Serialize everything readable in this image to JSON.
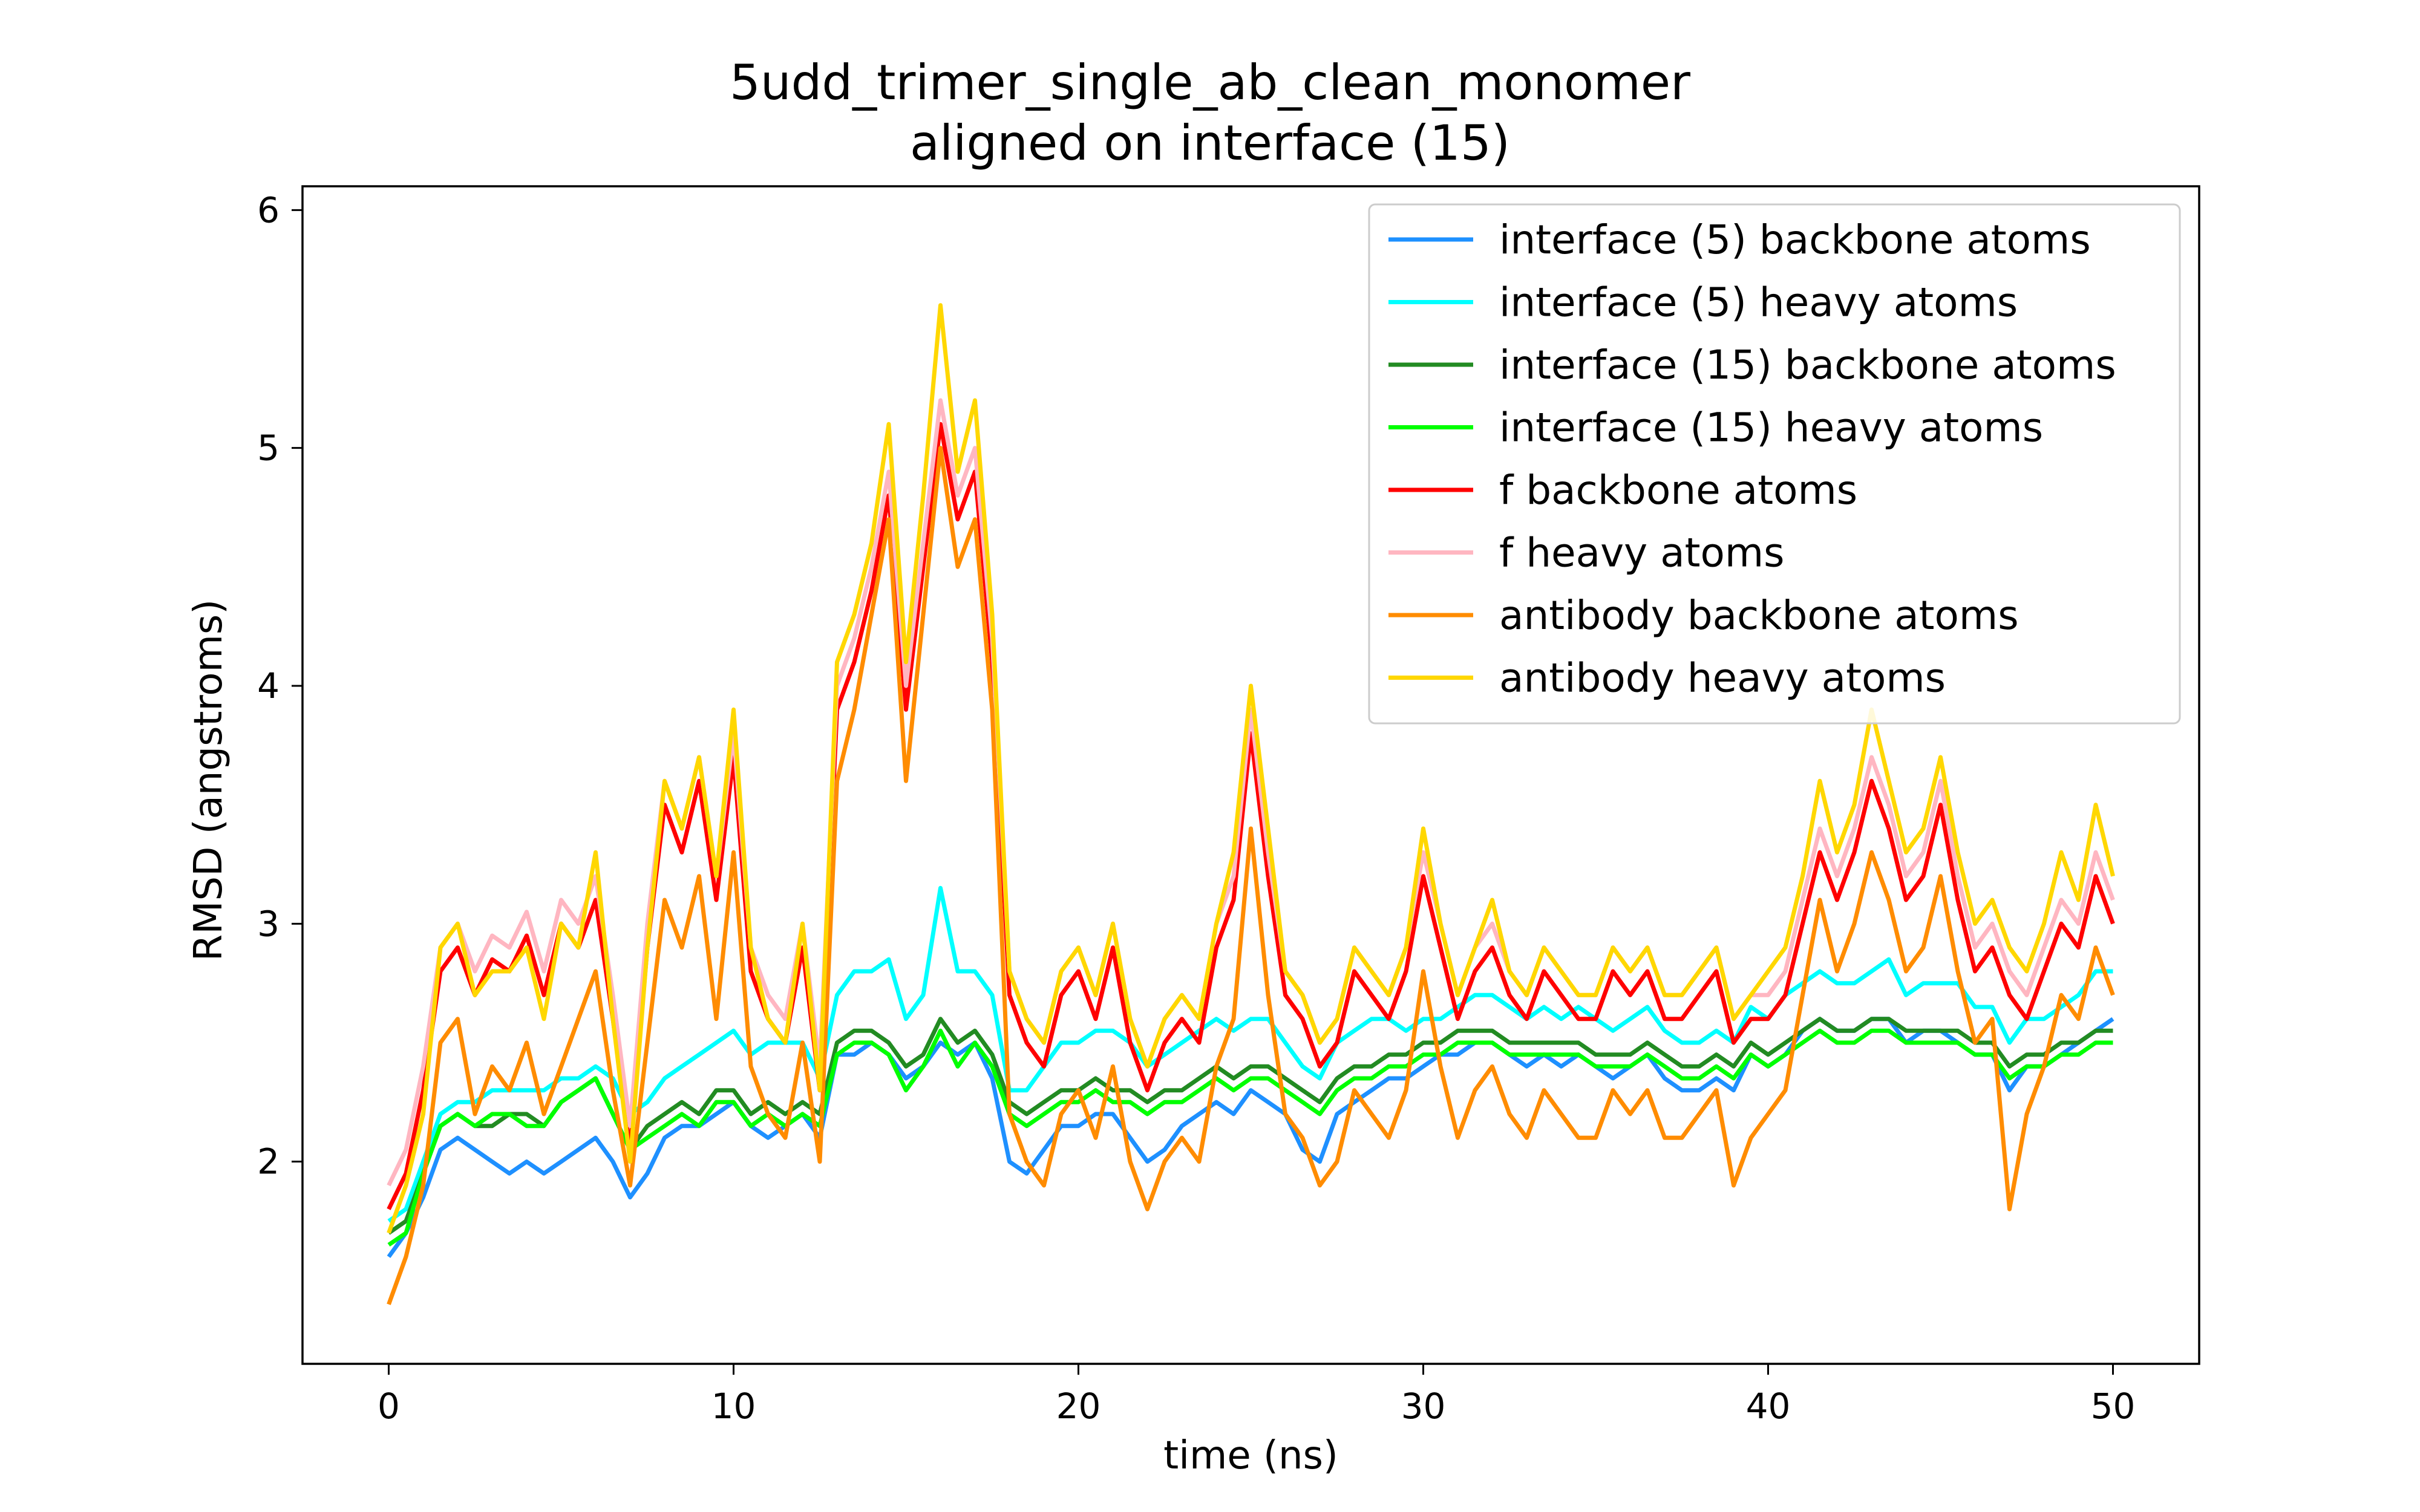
{
  "chart_data": {
    "type": "line",
    "title": [
      "5udd_trimer_single_ab_clean_monomer",
      "aligned on interface (15)"
    ],
    "xlabel": "time (ns)",
    "ylabel": "RMSD (angstroms)",
    "xlim": [
      -2.5,
      52.5
    ],
    "ylim": [
      1.15,
      6.1
    ],
    "xticks": [
      0,
      10,
      20,
      30,
      40,
      50
    ],
    "yticks": [
      2,
      3,
      4,
      5,
      6
    ],
    "grid": false,
    "legend_position": "top-right",
    "x": [
      0,
      0.5,
      1,
      1.5,
      2,
      2.5,
      3,
      3.5,
      4,
      4.5,
      5,
      5.5,
      6,
      6.5,
      7,
      7.5,
      8,
      8.5,
      9,
      9.5,
      10,
      10.5,
      11,
      11.5,
      12,
      12.5,
      13,
      13.5,
      14,
      14.5,
      15,
      15.5,
      16,
      16.5,
      17,
      17.5,
      18,
      18.5,
      19,
      19.5,
      20,
      20.5,
      21,
      21.5,
      22,
      22.5,
      23,
      23.5,
      24,
      24.5,
      25,
      25.5,
      26,
      26.5,
      27,
      27.5,
      28,
      28.5,
      29,
      29.5,
      30,
      30.5,
      31,
      31.5,
      32,
      32.5,
      33,
      33.5,
      34,
      34.5,
      35,
      35.5,
      36,
      36.5,
      37,
      37.5,
      38,
      38.5,
      39,
      39.5,
      40,
      40.5,
      41,
      41.5,
      42,
      42.5,
      43,
      43.5,
      44,
      44.5,
      45,
      45.5,
      46,
      46.5,
      47,
      47.5,
      48,
      48.5,
      49,
      49.5,
      50
    ],
    "series": [
      {
        "name": "interface (5) backbone atoms",
        "color": "#1e90ff",
        "values": [
          1.6,
          1.7,
          1.85,
          2.05,
          2.1,
          2.05,
          2.0,
          1.95,
          2.0,
          1.95,
          2.0,
          2.05,
          2.1,
          2.0,
          1.85,
          1.95,
          2.1,
          2.15,
          2.15,
          2.2,
          2.25,
          2.15,
          2.1,
          2.15,
          2.2,
          2.1,
          2.45,
          2.45,
          2.5,
          2.45,
          2.35,
          2.4,
          2.5,
          2.45,
          2.5,
          2.35,
          2.0,
          1.95,
          2.05,
          2.15,
          2.15,
          2.2,
          2.2,
          2.1,
          2.0,
          2.05,
          2.15,
          2.2,
          2.25,
          2.2,
          2.3,
          2.25,
          2.2,
          2.05,
          2.0,
          2.2,
          2.25,
          2.3,
          2.35,
          2.35,
          2.4,
          2.45,
          2.45,
          2.5,
          2.5,
          2.45,
          2.4,
          2.45,
          2.4,
          2.45,
          2.4,
          2.35,
          2.4,
          2.45,
          2.35,
          2.3,
          2.3,
          2.35,
          2.3,
          2.45,
          2.4,
          2.45,
          2.55,
          2.6,
          2.55,
          2.55,
          2.6,
          2.6,
          2.5,
          2.55,
          2.55,
          2.5,
          2.45,
          2.45,
          2.3,
          2.4,
          2.4,
          2.45,
          2.5,
          2.55,
          2.6
        ]
      },
      {
        "name": "interface (5) heavy atoms",
        "color": "#00ffff",
        "values": [
          1.75,
          1.8,
          2.0,
          2.2,
          2.25,
          2.25,
          2.3,
          2.3,
          2.3,
          2.3,
          2.35,
          2.35,
          2.4,
          2.35,
          2.2,
          2.25,
          2.35,
          2.4,
          2.45,
          2.5,
          2.55,
          2.45,
          2.5,
          2.5,
          2.5,
          2.35,
          2.7,
          2.8,
          2.8,
          2.85,
          2.6,
          2.7,
          3.15,
          2.8,
          2.8,
          2.7,
          2.3,
          2.3,
          2.4,
          2.5,
          2.5,
          2.55,
          2.55,
          2.5,
          2.4,
          2.45,
          2.5,
          2.55,
          2.6,
          2.55,
          2.6,
          2.6,
          2.5,
          2.4,
          2.35,
          2.5,
          2.55,
          2.6,
          2.6,
          2.55,
          2.6,
          2.6,
          2.65,
          2.7,
          2.7,
          2.65,
          2.6,
          2.65,
          2.6,
          2.65,
          2.6,
          2.55,
          2.6,
          2.65,
          2.55,
          2.5,
          2.5,
          2.55,
          2.5,
          2.65,
          2.6,
          2.7,
          2.75,
          2.8,
          2.75,
          2.75,
          2.8,
          2.85,
          2.7,
          2.75,
          2.75,
          2.75,
          2.65,
          2.65,
          2.5,
          2.6,
          2.6,
          2.65,
          2.7,
          2.8,
          2.8
        ]
      },
      {
        "name": "interface (15) backbone atoms",
        "color": "#228b22",
        "values": [
          1.7,
          1.75,
          1.95,
          2.15,
          2.2,
          2.15,
          2.15,
          2.2,
          2.2,
          2.15,
          2.25,
          2.3,
          2.35,
          2.2,
          2.05,
          2.15,
          2.2,
          2.25,
          2.2,
          2.3,
          2.3,
          2.2,
          2.25,
          2.2,
          2.25,
          2.2,
          2.5,
          2.55,
          2.55,
          2.5,
          2.4,
          2.45,
          2.6,
          2.5,
          2.55,
          2.45,
          2.25,
          2.2,
          2.25,
          2.3,
          2.3,
          2.35,
          2.3,
          2.3,
          2.25,
          2.3,
          2.3,
          2.35,
          2.4,
          2.35,
          2.4,
          2.4,
          2.35,
          2.3,
          2.25,
          2.35,
          2.4,
          2.4,
          2.45,
          2.45,
          2.5,
          2.5,
          2.55,
          2.55,
          2.55,
          2.5,
          2.5,
          2.5,
          2.5,
          2.5,
          2.45,
          2.45,
          2.45,
          2.5,
          2.45,
          2.4,
          2.4,
          2.45,
          2.4,
          2.5,
          2.45,
          2.5,
          2.55,
          2.6,
          2.55,
          2.55,
          2.6,
          2.6,
          2.55,
          2.55,
          2.55,
          2.55,
          2.5,
          2.5,
          2.4,
          2.45,
          2.45,
          2.5,
          2.5,
          2.55,
          2.55
        ]
      },
      {
        "name": "interface (15) heavy atoms",
        "color": "#00ff00",
        "values": [
          1.65,
          1.7,
          1.95,
          2.15,
          2.2,
          2.15,
          2.2,
          2.2,
          2.15,
          2.15,
          2.25,
          2.3,
          2.35,
          2.2,
          2.05,
          2.1,
          2.15,
          2.2,
          2.15,
          2.25,
          2.25,
          2.15,
          2.2,
          2.15,
          2.2,
          2.15,
          2.45,
          2.5,
          2.5,
          2.45,
          2.3,
          2.4,
          2.55,
          2.4,
          2.5,
          2.4,
          2.2,
          2.15,
          2.2,
          2.25,
          2.25,
          2.3,
          2.25,
          2.25,
          2.2,
          2.25,
          2.25,
          2.3,
          2.35,
          2.3,
          2.35,
          2.35,
          2.3,
          2.25,
          2.2,
          2.3,
          2.35,
          2.35,
          2.4,
          2.4,
          2.45,
          2.45,
          2.5,
          2.5,
          2.5,
          2.45,
          2.45,
          2.45,
          2.45,
          2.45,
          2.4,
          2.4,
          2.4,
          2.45,
          2.4,
          2.35,
          2.35,
          2.4,
          2.35,
          2.45,
          2.4,
          2.45,
          2.5,
          2.55,
          2.5,
          2.5,
          2.55,
          2.55,
          2.5,
          2.5,
          2.5,
          2.5,
          2.45,
          2.45,
          2.35,
          2.4,
          2.4,
          2.45,
          2.45,
          2.5,
          2.5
        ]
      },
      {
        "name": "f backbone atoms",
        "color": "#ff0000",
        "values": [
          1.8,
          1.95,
          2.3,
          2.8,
          2.9,
          2.7,
          2.85,
          2.8,
          2.95,
          2.7,
          3.0,
          2.9,
          3.1,
          2.6,
          2.05,
          2.9,
          3.5,
          3.3,
          3.6,
          3.1,
          3.7,
          2.8,
          2.6,
          2.5,
          2.9,
          2.3,
          3.9,
          4.1,
          4.4,
          4.8,
          3.9,
          4.5,
          5.1,
          4.7,
          4.9,
          4.1,
          2.7,
          2.5,
          2.4,
          2.7,
          2.8,
          2.6,
          2.9,
          2.5,
          2.3,
          2.5,
          2.6,
          2.5,
          2.9,
          3.1,
          3.8,
          3.2,
          2.7,
          2.6,
          2.4,
          2.5,
          2.8,
          2.7,
          2.6,
          2.8,
          3.2,
          2.9,
          2.6,
          2.8,
          2.9,
          2.7,
          2.6,
          2.8,
          2.7,
          2.6,
          2.6,
          2.8,
          2.7,
          2.8,
          2.6,
          2.6,
          2.7,
          2.8,
          2.5,
          2.6,
          2.6,
          2.7,
          3.0,
          3.3,
          3.1,
          3.3,
          3.6,
          3.4,
          3.1,
          3.2,
          3.5,
          3.1,
          2.8,
          2.9,
          2.7,
          2.6,
          2.8,
          3.0,
          2.9,
          3.2,
          3.0
        ]
      },
      {
        "name": "f heavy atoms",
        "color": "#ffb6c1",
        "values": [
          1.9,
          2.05,
          2.4,
          2.9,
          3.0,
          2.8,
          2.95,
          2.9,
          3.05,
          2.8,
          3.1,
          3.0,
          3.2,
          2.7,
          2.15,
          3.0,
          3.6,
          3.4,
          3.7,
          3.2,
          3.8,
          2.9,
          2.7,
          2.6,
          3.0,
          2.4,
          4.0,
          4.2,
          4.5,
          4.9,
          4.0,
          4.6,
          5.2,
          4.8,
          5.0,
          4.2,
          2.8,
          2.6,
          2.5,
          2.8,
          2.9,
          2.7,
          3.0,
          2.6,
          2.4,
          2.6,
          2.7,
          2.6,
          3.0,
          3.2,
          3.9,
          3.3,
          2.8,
          2.7,
          2.5,
          2.6,
          2.9,
          2.8,
          2.7,
          2.9,
          3.3,
          3.0,
          2.7,
          2.9,
          3.0,
          2.8,
          2.7,
          2.9,
          2.8,
          2.7,
          2.7,
          2.9,
          2.8,
          2.9,
          2.7,
          2.7,
          2.8,
          2.9,
          2.6,
          2.7,
          2.7,
          2.8,
          3.1,
          3.4,
          3.2,
          3.4,
          3.7,
          3.5,
          3.2,
          3.3,
          3.6,
          3.2,
          2.9,
          3.0,
          2.8,
          2.7,
          2.9,
          3.1,
          3.0,
          3.3,
          3.1
        ]
      },
      {
        "name": "antibody backbone atoms",
        "color": "#ff8c00",
        "values": [
          1.4,
          1.6,
          1.9,
          2.5,
          2.6,
          2.2,
          2.4,
          2.3,
          2.5,
          2.2,
          2.4,
          2.6,
          2.8,
          2.3,
          1.9,
          2.5,
          3.1,
          2.9,
          3.2,
          2.6,
          3.3,
          2.4,
          2.2,
          2.1,
          2.5,
          2.0,
          3.6,
          3.9,
          4.3,
          4.7,
          3.6,
          4.3,
          5.0,
          4.5,
          4.7,
          3.9,
          2.2,
          2.0,
          1.9,
          2.2,
          2.3,
          2.1,
          2.4,
          2.0,
          1.8,
          2.0,
          2.1,
          2.0,
          2.4,
          2.6,
          3.4,
          2.7,
          2.2,
          2.1,
          1.9,
          2.0,
          2.3,
          2.2,
          2.1,
          2.3,
          2.8,
          2.4,
          2.1,
          2.3,
          2.4,
          2.2,
          2.1,
          2.3,
          2.2,
          2.1,
          2.1,
          2.3,
          2.2,
          2.3,
          2.1,
          2.1,
          2.2,
          2.3,
          1.9,
          2.1,
          2.2,
          2.3,
          2.7,
          3.1,
          2.8,
          3.0,
          3.3,
          3.1,
          2.8,
          2.9,
          3.2,
          2.8,
          2.5,
          2.6,
          1.8,
          2.2,
          2.4,
          2.7,
          2.6,
          2.9,
          2.7
        ]
      },
      {
        "name": "antibody heavy atoms",
        "color": "#ffd700",
        "values": [
          1.7,
          1.9,
          2.2,
          2.9,
          3.0,
          2.7,
          2.8,
          2.8,
          2.9,
          2.6,
          3.0,
          2.9,
          3.3,
          2.6,
          2.0,
          2.9,
          3.6,
          3.4,
          3.7,
          3.2,
          3.9,
          2.9,
          2.6,
          2.5,
          3.0,
          2.3,
          4.1,
          4.3,
          4.6,
          5.1,
          4.1,
          4.8,
          5.6,
          4.9,
          5.2,
          4.3,
          2.8,
          2.6,
          2.5,
          2.8,
          2.9,
          2.7,
          3.0,
          2.6,
          2.4,
          2.6,
          2.7,
          2.6,
          3.0,
          3.3,
          4.0,
          3.4,
          2.8,
          2.7,
          2.5,
          2.6,
          2.9,
          2.8,
          2.7,
          2.9,
          3.4,
          3.0,
          2.7,
          2.9,
          3.1,
          2.8,
          2.7,
          2.9,
          2.8,
          2.7,
          2.7,
          2.9,
          2.8,
          2.9,
          2.7,
          2.7,
          2.8,
          2.9,
          2.6,
          2.7,
          2.8,
          2.9,
          3.2,
          3.6,
          3.3,
          3.5,
          3.9,
          3.6,
          3.3,
          3.4,
          3.7,
          3.3,
          3.0,
          3.1,
          2.9,
          2.8,
          3.0,
          3.3,
          3.1,
          3.5,
          3.2
        ]
      }
    ]
  }
}
